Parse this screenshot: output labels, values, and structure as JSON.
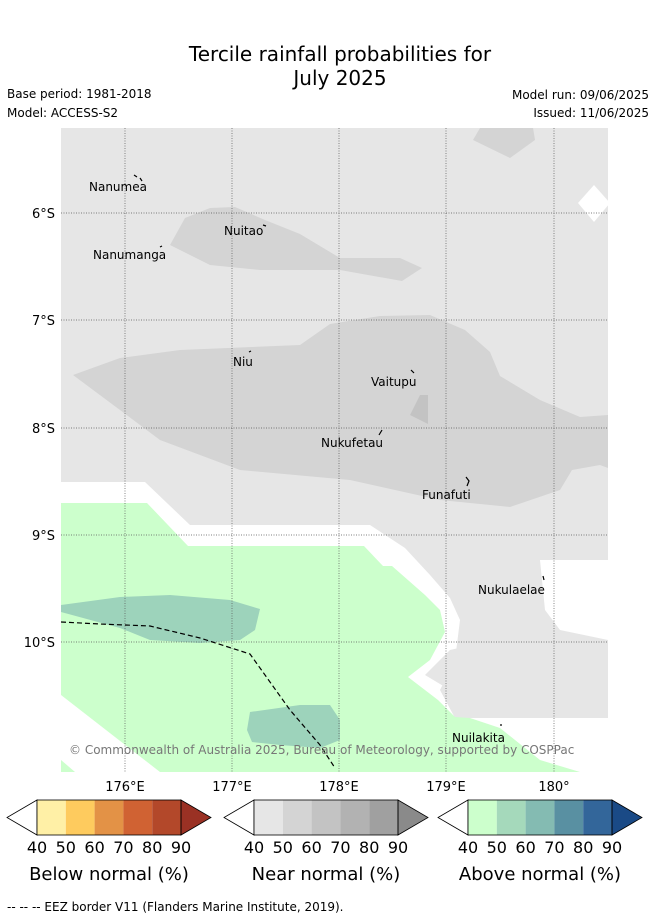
{
  "title_line1": "Tercile rainfall probabilities for",
  "title_line2": "July 2025",
  "base_period": "Base period: 1981-2018",
  "model": "Model: ACCESS-S2",
  "model_run": "Model run: 09/06/2025",
  "issued": "Issued: 11/06/2025",
  "credit": "© Commonwealth of Australia 2025, Bureau of Meteorology, supported by COSPPac",
  "latitude_labels": [
    "6°S",
    "7°S",
    "8°S",
    "9°S",
    "10°S"
  ],
  "longitude_labels": [
    "176°E",
    "177°E",
    "178°E",
    "179°E",
    "180°"
  ],
  "places": [
    "Nanumea",
    "Nuitao",
    "Nanumanga",
    "Niu",
    "Vaitupu",
    "Nukufetau",
    "Funafuti",
    "Nukulaelae",
    "Nuilakita"
  ],
  "colorbars": [
    {
      "title": "Below normal (%)",
      "ticks": [
        "40",
        "50",
        "60",
        "70",
        "80",
        "90"
      ],
      "colors": [
        "#ffffff",
        "#fff0a6",
        "#fecb5e",
        "#e39246",
        "#d06233",
        "#b3482a",
        "#9a3124"
      ]
    },
    {
      "title": "Near normal (%)",
      "ticks": [
        "40",
        "50",
        "60",
        "70",
        "80",
        "90"
      ],
      "colors": [
        "#ffffff",
        "#e6e6e6",
        "#d4d4d4",
        "#c3c3c3",
        "#b2b2b2",
        "#a0a0a0",
        "#8a8a8a"
      ]
    },
    {
      "title": "Above normal (%)",
      "ticks": [
        "40",
        "50",
        "60",
        "70",
        "80",
        "90"
      ],
      "colors": [
        "#ffffff",
        "#ccffcc",
        "#a5d9bb",
        "#84bbb2",
        "#5990a2",
        "#33669a",
        "#1a4a86"
      ]
    }
  ],
  "legend_footer": "--  --  -- EEZ border V11 (Flanders Marine Institute, 2019).",
  "map_colors": {
    "near_40": "#e6e6e6",
    "near_50": "#d4d4d4",
    "above_40": "#ccffcc",
    "above_50": "#9dd3bb"
  }
}
